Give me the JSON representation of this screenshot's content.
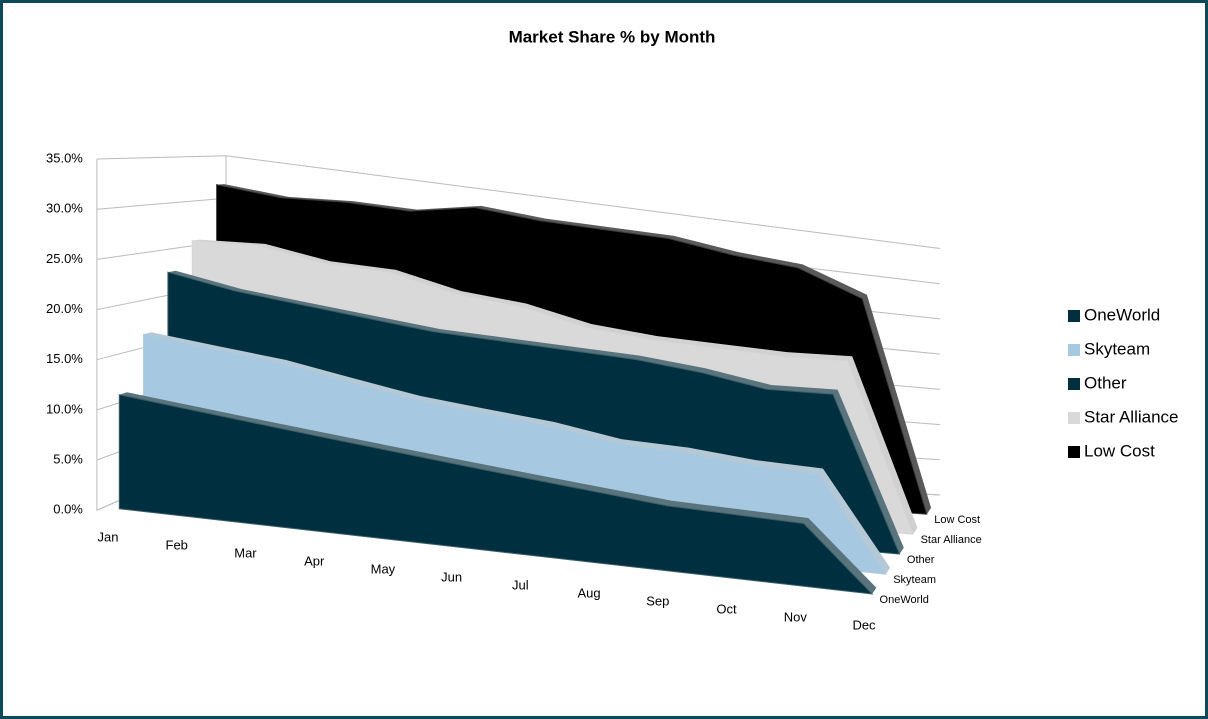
{
  "chart_data": {
    "type": "area3d",
    "title": "Market Share % by Month",
    "categories": [
      "Jan",
      "Feb",
      "Mar",
      "Apr",
      "May",
      "Jun",
      "Jul",
      "Aug",
      "Sep",
      "Oct",
      "Nov",
      "Dec"
    ],
    "series": [
      {
        "name": "OneWorld",
        "color": "#00303f",
        "values": [
          11.5,
          11,
          10.5,
          10,
          9.5,
          9,
          8.5,
          8,
          7.5,
          7.5,
          7.5,
          0
        ]
      },
      {
        "name": "Skyteam",
        "color": "#a6c8e0",
        "values": [
          17,
          16.5,
          16,
          15,
          14,
          13.5,
          13,
          12,
          12,
          11.5,
          11.5,
          0
        ]
      },
      {
        "name": "Other",
        "color": "#00303f",
        "values": [
          23,
          22,
          21.5,
          21,
          20.5,
          20.5,
          20.5,
          20.5,
          20,
          19,
          19.5,
          0
        ]
      },
      {
        "name": "Star Alliance",
        "color": "#d9d9d9",
        "values": [
          26,
          26.5,
          25.5,
          25.5,
          24,
          23.5,
          22,
          21.5,
          21.5,
          21.5,
          22,
          0
        ]
      },
      {
        "name": "Low Cost",
        "color": "#000000",
        "values": [
          32,
          31.5,
          32,
          32,
          33.5,
          33,
          33,
          33,
          32,
          31.5,
          28.5,
          0
        ]
      }
    ],
    "ylim": [
      0,
      35
    ],
    "yticks": [
      {
        "value": 0,
        "label": "0.0%"
      },
      {
        "value": 5,
        "label": "5.0%"
      },
      {
        "value": 10,
        "label": "10.0%"
      },
      {
        "value": 15,
        "label": "15.0%"
      },
      {
        "value": 20,
        "label": "20.0%"
      },
      {
        "value": 25,
        "label": "25.0%"
      },
      {
        "value": 30,
        "label": "30.0%"
      },
      {
        "value": 35,
        "label": "35.0%"
      }
    ],
    "grid": true,
    "legend": "right"
  }
}
